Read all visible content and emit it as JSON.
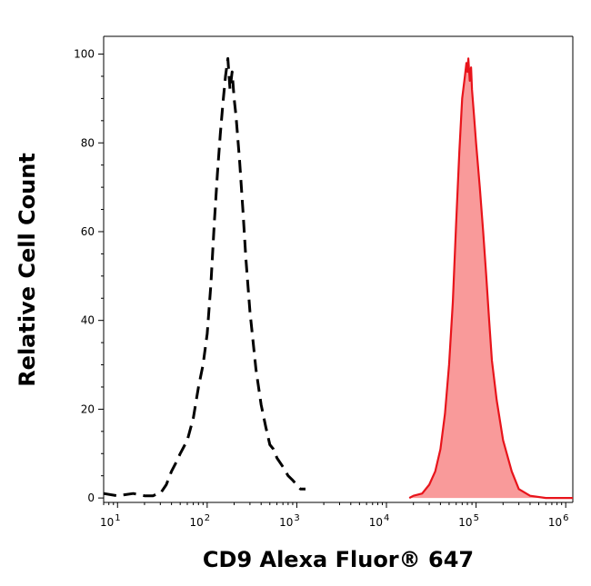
{
  "chart_data": {
    "type": "area",
    "xlabel": "CD9 Alexa Fluor® 647",
    "ylabel": "Relative Cell Count",
    "x_scale": "log",
    "xlim": [
      7,
      1200000
    ],
    "ylim": [
      -1,
      104
    ],
    "x_ticks": [
      {
        "value": 10,
        "base": "10",
        "exp": "1"
      },
      {
        "value": 100,
        "base": "10",
        "exp": "2"
      },
      {
        "value": 1000,
        "base": "10",
        "exp": "3"
      },
      {
        "value": 10000,
        "base": "10",
        "exp": "4"
      },
      {
        "value": 100000,
        "base": "10",
        "exp": "5"
      },
      {
        "value": 1000000,
        "base": "10",
        "exp": "6"
      }
    ],
    "y_ticks": [
      0,
      20,
      40,
      60,
      80,
      100
    ],
    "grid": false,
    "legend": "none",
    "series": [
      {
        "style": "dashed-line",
        "color": "#000000",
        "x": [
          7,
          10,
          15,
          20,
          25,
          28,
          30,
          35,
          40,
          45,
          50,
          60,
          70,
          80,
          90,
          100,
          110,
          120,
          130,
          140,
          150,
          160,
          170,
          180,
          190,
          200,
          210,
          230,
          250,
          270,
          300,
          350,
          400,
          450,
          500,
          550,
          600,
          700,
          800,
          900,
          1000,
          1100,
          1250
        ],
        "y": [
          1,
          0.5,
          1,
          0.5,
          0.5,
          1,
          1,
          3,
          6,
          8,
          10,
          13,
          18,
          25,
          30,
          37,
          48,
          62,
          73,
          82,
          89,
          95,
          99,
          92,
          96,
          90,
          86,
          76,
          65,
          54,
          42,
          29,
          21,
          16,
          12,
          11,
          9,
          7,
          5,
          4,
          3,
          2,
          2
        ]
      },
      {
        "style": "filled-area",
        "color": "#e8141b",
        "fill": "#f99a9a",
        "x": [
          18000,
          20000,
          25000,
          30000,
          35000,
          40000,
          45000,
          50000,
          55000,
          60000,
          65000,
          70000,
          75000,
          78000,
          80000,
          82000,
          85000,
          88000,
          90000,
          95000,
          100000,
          110000,
          120000,
          130000,
          140000,
          150000,
          170000,
          200000,
          250000,
          300000,
          400000,
          600000,
          1200000
        ],
        "y": [
          0,
          0.5,
          1,
          3,
          6,
          11,
          19,
          30,
          44,
          62,
          78,
          90,
          95,
          98,
          96,
          99,
          94,
          97,
          92,
          86,
          80,
          70,
          60,
          50,
          40,
          31,
          22,
          13,
          6,
          2,
          0.5,
          0,
          0
        ]
      }
    ]
  }
}
